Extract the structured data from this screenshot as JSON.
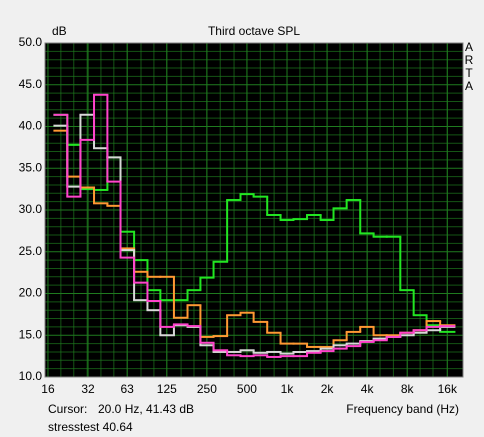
{
  "chart_data": {
    "type": "line",
    "drawstyle": "steps-mid",
    "title": "Third octave SPL",
    "ylabel": "dB",
    "xlabel": "Frequency band (Hz)",
    "side_label": [
      "A",
      "R",
      "T",
      "A"
    ],
    "cursor_label": "Cursor:",
    "cursor_value": "20.0 Hz, 41.43 dB",
    "footer": "stresstest 40.64",
    "xscale": "log",
    "xlim": [
      15.2,
      21000
    ],
    "ylim": [
      10,
      50
    ],
    "xticks": [
      16,
      32,
      63,
      125,
      250,
      500,
      {
        "value": 1000,
        "label": "1k"
      },
      {
        "value": 2000,
        "label": "2k"
      },
      {
        "value": 4000,
        "label": "4k"
      },
      {
        "value": 8000,
        "label": "8k"
      },
      {
        "value": 16000,
        "label": "16k"
      }
    ],
    "yticks": [
      {
        "value": 10,
        "label": "10.0"
      },
      {
        "value": 15,
        "label": "15.0"
      },
      {
        "value": 20,
        "label": "20.0"
      },
      {
        "value": 25,
        "label": "25.0"
      },
      {
        "value": 30,
        "label": "30.0"
      },
      {
        "value": 35,
        "label": "35.0"
      },
      {
        "value": 40,
        "label": "40.0"
      },
      {
        "value": 45,
        "label": "45.0"
      },
      {
        "value": 50,
        "label": "50.0"
      }
    ],
    "yminor_ticks": [
      11,
      12,
      13,
      14,
      16,
      17,
      18,
      19,
      21,
      22,
      23,
      24,
      26,
      27,
      28,
      29,
      31,
      32,
      33,
      34,
      36,
      37,
      38,
      39,
      41,
      42,
      43,
      44,
      46,
      47,
      48,
      49
    ],
    "grid": true,
    "grid_color": "#1f7a1f",
    "background": "#000000",
    "x": [
      20,
      25,
      31.5,
      40,
      50,
      63,
      80,
      100,
      125,
      160,
      200,
      250,
      315,
      400,
      500,
      630,
      800,
      1000,
      1250,
      1600,
      2000,
      2500,
      3150,
      4000,
      5000,
      6300,
      8000,
      10000,
      12500,
      16000
    ],
    "series": [
      {
        "color": "#22e622",
        "values": [
          41.4,
          37.8,
          32.5,
          32.4,
          36.3,
          27.4,
          24.0,
          20.4,
          19.2,
          19.2,
          20.4,
          21.9,
          23.8,
          31.2,
          31.9,
          31.6,
          29.4,
          28.8,
          28.9,
          29.4,
          28.8,
          30.2,
          31.2,
          27.2,
          26.8,
          26.8,
          20.4,
          17.4,
          16.2,
          15.4
        ]
      },
      {
        "color": "#ff9933",
        "values": [
          39.5,
          34.0,
          32.7,
          30.8,
          30.5,
          25.4,
          22.6,
          22.0,
          22.0,
          17.1,
          18.6,
          14.8,
          14.9,
          17.4,
          17.7,
          16.6,
          15.3,
          14.0,
          14.0,
          13.6,
          13.6,
          14.4,
          15.4,
          16.0,
          15.0,
          15.0,
          15.3,
          15.6,
          16.7,
          16.2
        ]
      },
      {
        "color": "#d8d8d8",
        "values": [
          40.1,
          32.8,
          41.4,
          37.4,
          36.3,
          25.2,
          19.2,
          18.0,
          15.0,
          16.2,
          16.0,
          13.8,
          13.0,
          13.0,
          13.2,
          12.9,
          13.0,
          12.8,
          13.0,
          13.1,
          13.4,
          13.8,
          14.0,
          14.3,
          14.6,
          14.8,
          15.0,
          15.3,
          15.6,
          16.0
        ]
      },
      {
        "color": "#ff44cc",
        "values": [
          41.4,
          31.6,
          38.4,
          43.8,
          33.4,
          24.3,
          21.3,
          19.1,
          16.0,
          16.3,
          16.1,
          14.1,
          13.2,
          12.6,
          12.5,
          12.6,
          12.4,
          12.5,
          12.5,
          12.9,
          13.1,
          13.4,
          13.7,
          14.2,
          14.4,
          14.8,
          15.3,
          15.6,
          16.0,
          16.1
        ]
      }
    ]
  }
}
